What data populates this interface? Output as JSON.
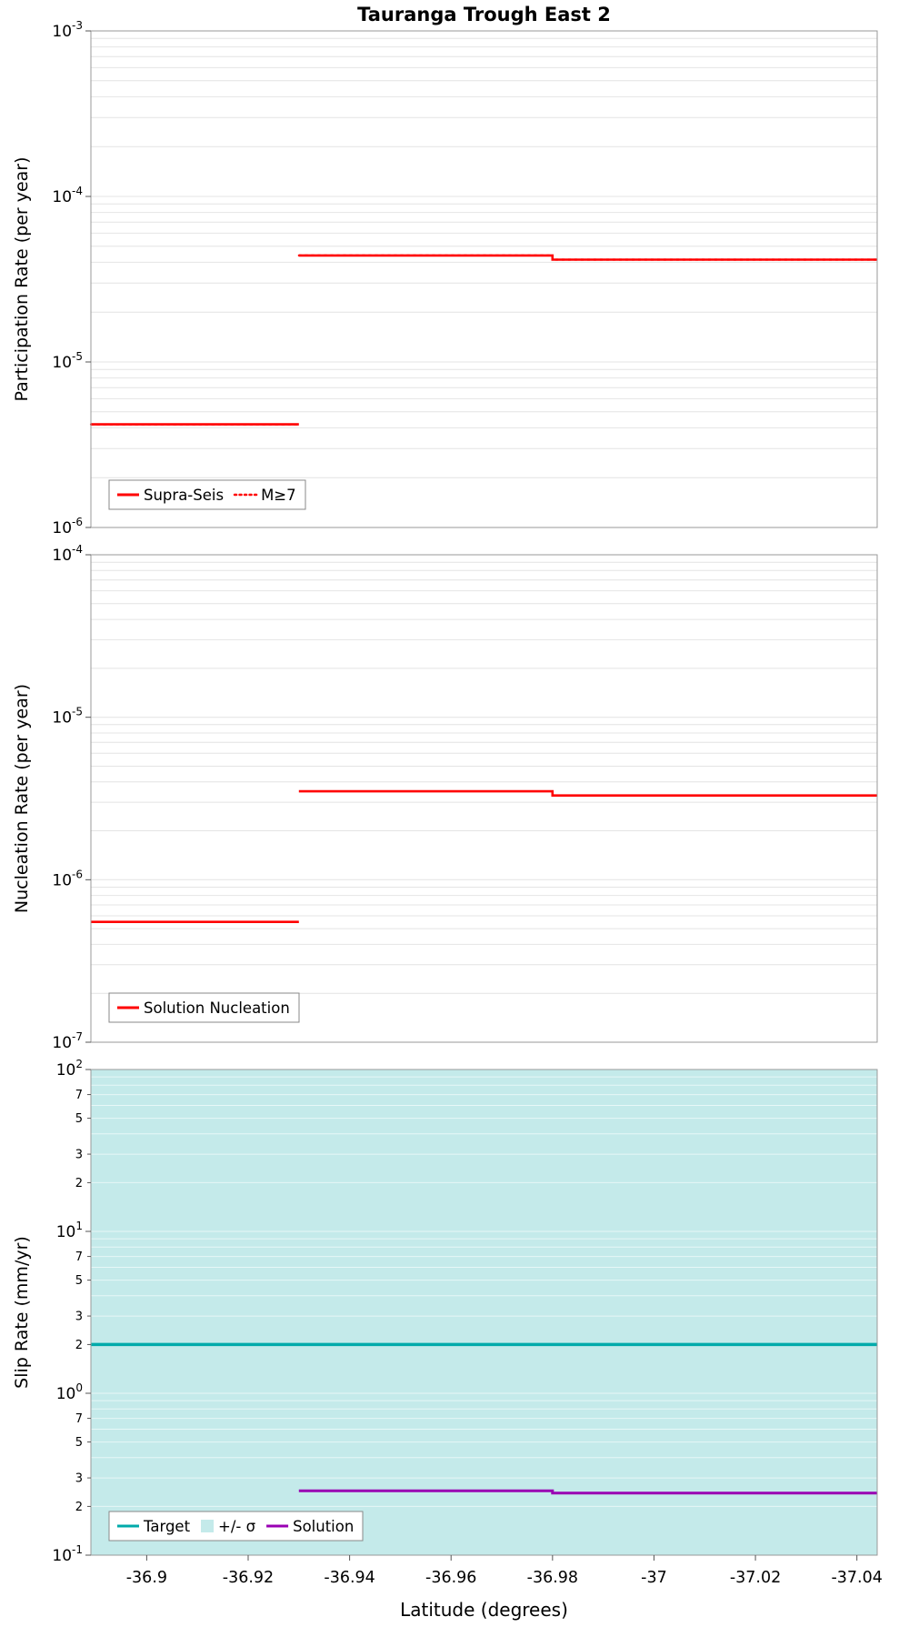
{
  "chart_data": [
    {
      "type": "line",
      "panel": "participation-rate",
      "title": "Tauranga Trough East 2",
      "ylabel": "Participation Rate (per year)",
      "yscale": "log",
      "ylim": [
        1e-06,
        0.001
      ],
      "xlim": [
        -36.889,
        -37.044
      ],
      "y_tick_exponents": [
        -3,
        -4,
        -5,
        -6
      ],
      "show_x_tick_labels": false,
      "series": [
        {
          "name": "Supra-Seis",
          "color": "#ff0000",
          "style": "solid",
          "width": 2.6,
          "segments": [
            [
              [
                -36.889,
                4.2e-06
              ],
              [
                -36.93,
                4.2e-06
              ]
            ],
            [
              [
                -36.93,
                4.4e-05
              ],
              [
                -36.98,
                4.4e-05
              ],
              [
                -36.98,
                4.15e-05
              ],
              [
                -37.044,
                4.15e-05
              ]
            ]
          ]
        },
        {
          "name": "M≥7",
          "color": "#ff0000",
          "style": "dotted",
          "width": 2.2,
          "segments": [
            [
              [
                -36.889,
                4.2e-06
              ],
              [
                -36.93,
                4.2e-06
              ]
            ],
            [
              [
                -36.93,
                4.4e-05
              ],
              [
                -36.98,
                4.4e-05
              ],
              [
                -36.98,
                4.15e-05
              ],
              [
                -37.044,
                4.15e-05
              ]
            ]
          ]
        }
      ],
      "legend": [
        {
          "label": "Supra-Seis",
          "swatch": "line-solid",
          "color": "#ff0000"
        },
        {
          "label": "M≥7",
          "swatch": "line-dotted",
          "color": "#ff0000"
        }
      ]
    },
    {
      "type": "line",
      "panel": "nucleation-rate",
      "ylabel": "Nucleation Rate (per year)",
      "yscale": "log",
      "ylim": [
        1e-07,
        0.0001
      ],
      "xlim": [
        -36.889,
        -37.044
      ],
      "y_tick_exponents": [
        -4,
        -5,
        -6,
        -7
      ],
      "show_x_tick_labels": false,
      "series": [
        {
          "name": "Solution Nucleation",
          "color": "#ff0000",
          "style": "solid",
          "width": 2.6,
          "segments": [
            [
              [
                -36.889,
                5.5e-07
              ],
              [
                -36.93,
                5.5e-07
              ]
            ],
            [
              [
                -36.93,
                3.5e-06
              ],
              [
                -36.98,
                3.5e-06
              ],
              [
                -36.98,
                3.3e-06
              ],
              [
                -37.044,
                3.3e-06
              ]
            ]
          ]
        }
      ],
      "legend": [
        {
          "label": "Solution Nucleation",
          "swatch": "line-solid",
          "color": "#ff0000"
        }
      ]
    },
    {
      "type": "line",
      "panel": "slip-rate",
      "ylabel": "Slip Rate (mm/yr)",
      "xlabel": "Latitude (degrees)",
      "yscale": "log",
      "ylim": [
        0.1,
        100
      ],
      "xlim": [
        -36.889,
        -37.044
      ],
      "y_tick_exponents": [
        2,
        1,
        0,
        -1
      ],
      "y_minor_label_mantissas": [
        7,
        5,
        3,
        2
      ],
      "show_x_tick_labels": true,
      "x_ticks": [
        -36.9,
        -36.92,
        -36.94,
        -36.96,
        -36.98,
        -37,
        -37.02,
        -37.04
      ],
      "x_tick_labels": [
        "-36.9",
        "-36.92",
        "-36.94",
        "-36.96",
        "-36.98",
        "-37",
        "-37.02",
        "-37.04"
      ],
      "band": {
        "name": "+/- σ",
        "y0": 0.1,
        "y1": 100,
        "color": "#c4eaea"
      },
      "series": [
        {
          "name": "Target",
          "color": "#00aaaa",
          "style": "solid",
          "width": 3.5,
          "segments": [
            [
              [
                -36.889,
                2.0
              ],
              [
                -37.044,
                2.0
              ]
            ]
          ]
        },
        {
          "name": "Solution",
          "color": "#9900b3",
          "style": "solid",
          "width": 3,
          "segments": [
            [
              [
                -36.93,
                0.25
              ],
              [
                -36.98,
                0.25
              ],
              [
                -36.98,
                0.242
              ],
              [
                -37.044,
                0.242
              ]
            ]
          ]
        }
      ],
      "legend": [
        {
          "label": "Target",
          "swatch": "line-solid",
          "color": "#00aaaa"
        },
        {
          "label": "+/- σ",
          "swatch": "patch",
          "color": "#c4eaea"
        },
        {
          "label": "Solution",
          "swatch": "line-solid",
          "color": "#9900b3"
        }
      ]
    }
  ]
}
